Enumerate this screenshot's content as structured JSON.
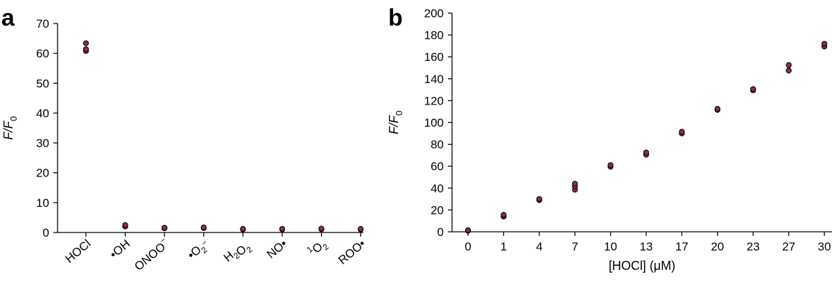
{
  "chart_data": [
    {
      "panel": "a",
      "type": "scatter",
      "ylabel": "F/F0",
      "ylim": [
        0,
        70
      ],
      "yticks": [
        0,
        10,
        20,
        30,
        40,
        50,
        60,
        70
      ],
      "categories": [
        "HOCl",
        "•OH",
        "ONOO−",
        "•O2−",
        "H2O2",
        "NO•",
        "1O2",
        "ROO•"
      ],
      "points": [
        {
          "category": "HOCl",
          "values": [
            60.8,
            61.4,
            63.4
          ]
        },
        {
          "category": "•OH",
          "values": [
            2.0,
            2.5
          ]
        },
        {
          "category": "ONOO−",
          "values": [
            1.4,
            1.6
          ]
        },
        {
          "category": "•O2−",
          "values": [
            1.5,
            1.7
          ]
        },
        {
          "category": "H2O2",
          "values": [
            1.0,
            1.2
          ]
        },
        {
          "category": "NO•",
          "values": [
            1.0,
            1.2
          ]
        },
        {
          "category": "1O2",
          "values": [
            1.1,
            1.3
          ]
        },
        {
          "category": "ROO•",
          "values": [
            1.0,
            1.2
          ]
        }
      ],
      "grid": false,
      "legend": "none"
    },
    {
      "panel": "b",
      "type": "scatter",
      "xlabel": "[HOCl] (μM)",
      "ylabel": "F/F0",
      "ylim": [
        0,
        200
      ],
      "yticks": [
        0,
        20,
        40,
        60,
        80,
        100,
        120,
        140,
        160,
        180,
        200
      ],
      "categories": [
        "0",
        "1",
        "4",
        "7",
        "10",
        "13",
        "17",
        "20",
        "23",
        "27",
        "30"
      ],
      "points": [
        {
          "category": "0",
          "values": [
            1.0,
            1.5
          ]
        },
        {
          "category": "1",
          "values": [
            14.0,
            15.5
          ]
        },
        {
          "category": "4",
          "values": [
            29.0,
            30.0
          ]
        },
        {
          "category": "7",
          "values": [
            38.5,
            41.5,
            44.0
          ]
        },
        {
          "category": "10",
          "values": [
            59.5,
            61.0
          ]
        },
        {
          "category": "13",
          "values": [
            70.5,
            72.5
          ]
        },
        {
          "category": "17",
          "values": [
            90.0,
            91.5
          ]
        },
        {
          "category": "20",
          "values": [
            111.5,
            112.5
          ]
        },
        {
          "category": "23",
          "values": [
            129.5,
            130.5
          ]
        },
        {
          "category": "27",
          "values": [
            147.5,
            152.5
          ]
        },
        {
          "category": "30",
          "values": [
            169.5,
            172.0
          ]
        }
      ],
      "grid": false,
      "legend": "none"
    }
  ]
}
